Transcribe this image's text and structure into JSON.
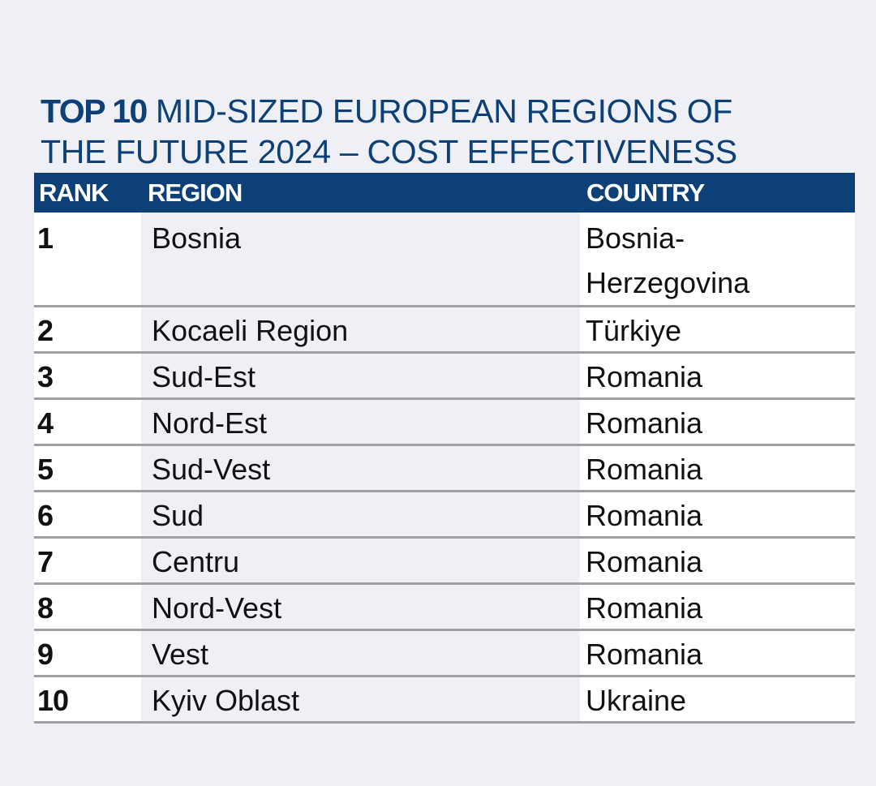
{
  "title": {
    "bold": "TOP 10",
    "line1_rest": " MID-SIZED EUROPEAN REGIONS OF",
    "line2": "THE FUTURE 2024 – COST EFFECTIVENESS"
  },
  "colors": {
    "header": "#0d4076",
    "background": "#eff0f5"
  },
  "table": {
    "headers": [
      "RANK",
      "REGION",
      "COUNTRY"
    ],
    "rows": [
      {
        "rank": "1",
        "region": "Bosnia",
        "country": "Bosnia-\nHerzegovina"
      },
      {
        "rank": "2",
        "region": "Kocaeli Region",
        "country": "Türkiye"
      },
      {
        "rank": "3",
        "region": "Sud-Est",
        "country": "Romania"
      },
      {
        "rank": "4",
        "region": "Nord-Est",
        "country": "Romania"
      },
      {
        "rank": "5",
        "region": "Sud-Vest",
        "country": "Romania"
      },
      {
        "rank": "6",
        "region": "Sud",
        "country": "Romania"
      },
      {
        "rank": "7",
        "region": "Centru",
        "country": "Romania"
      },
      {
        "rank": "8",
        "region": "Nord-Vest",
        "country": "Romania"
      },
      {
        "rank": "9",
        "region": "Vest",
        "country": "Romania"
      },
      {
        "rank": "10",
        "region": "Kyiv Oblast",
        "country": "Ukraine"
      }
    ]
  }
}
